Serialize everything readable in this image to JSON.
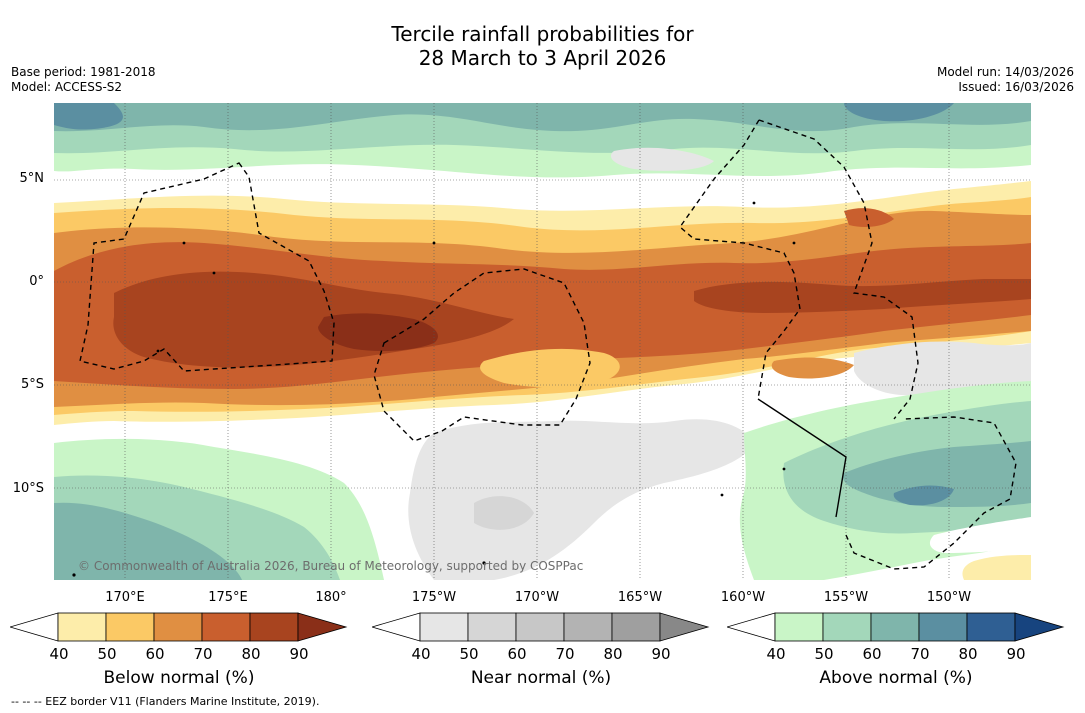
{
  "title": {
    "line1": "Tercile rainfall probabilities for",
    "line2": "28 March to 3 April 2026"
  },
  "meta": {
    "base_period": "Base period: 1981-2018",
    "model": "Model: ACCESS-S2",
    "model_run": "Model run: 14/03/2026",
    "issued": "Issued: 16/03/2026"
  },
  "map": {
    "lat_labels": [
      "5°N",
      "0°",
      "5°S",
      "10°S"
    ],
    "lon_labels": [
      "170°E",
      "175°E",
      "180°",
      "175°W",
      "170°W",
      "165°W",
      "160°W",
      "155°W",
      "150°W"
    ],
    "credit": "© Commonwealth of Australia 2026, Bureau of Meteorology, supported by COSPPac"
  },
  "legends": [
    {
      "title": "Below normal (%)",
      "ticks": [
        "40",
        "50",
        "60",
        "70",
        "80",
        "90"
      ],
      "colors": [
        "#ffffff",
        "#fdedaa",
        "#fbc965",
        "#e08f42",
        "#c95f2e",
        "#a8441f",
        "#8a2f18"
      ]
    },
    {
      "title": "Near normal (%)",
      "ticks": [
        "40",
        "50",
        "60",
        "70",
        "80",
        "90"
      ],
      "colors": [
        "#ffffff",
        "#e6e6e6",
        "#d6d6d6",
        "#c7c7c7",
        "#b3b3b3",
        "#9f9f9f",
        "#888888"
      ]
    },
    {
      "title": "Above normal (%)",
      "ticks": [
        "40",
        "50",
        "60",
        "70",
        "80",
        "90"
      ],
      "colors": [
        "#ffffff",
        "#c9f5c7",
        "#a3d7ba",
        "#7fb5ab",
        "#5b8fa1",
        "#2f5f93",
        "#17447f"
      ]
    }
  ],
  "footnote": "-- -- -- EEZ border V11 (Flanders Marine Institute, 2019)."
}
